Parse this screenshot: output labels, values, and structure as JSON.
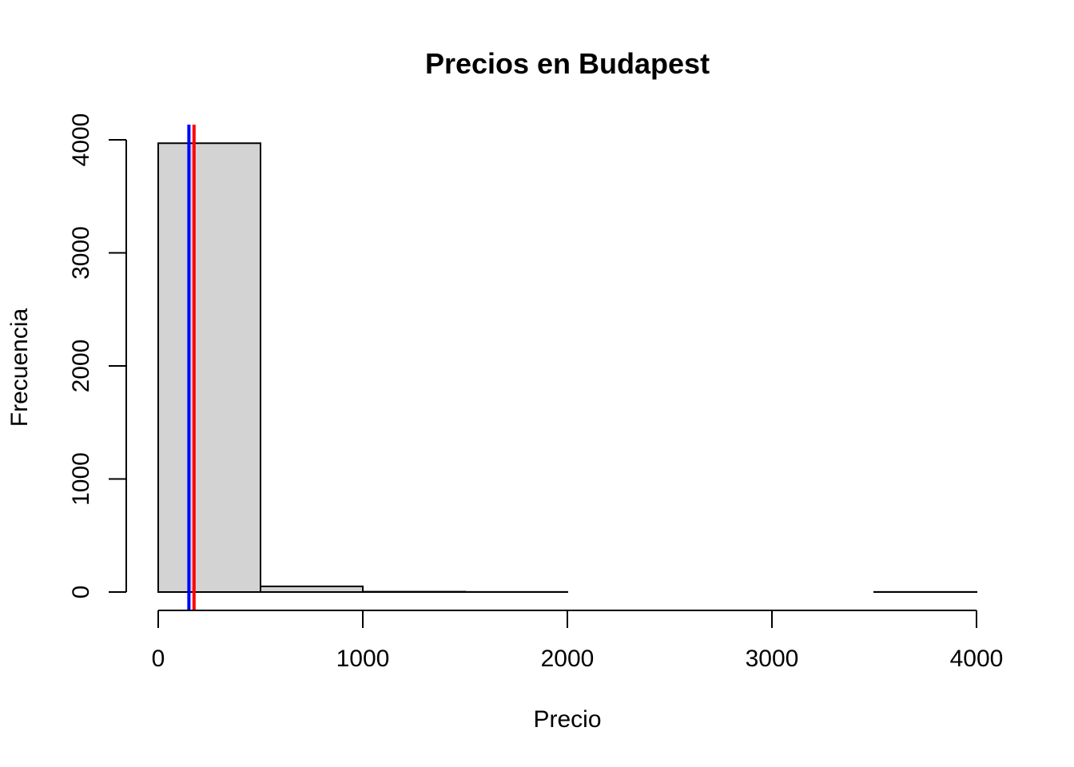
{
  "chart_data": {
    "type": "bar",
    "subtype": "histogram",
    "title": "Precios en Budapest",
    "xlabel": "Precio",
    "ylabel": "Frecuencia",
    "bins": [
      {
        "start": 0,
        "end": 500,
        "count": 3970
      },
      {
        "start": 500,
        "end": 1000,
        "count": 50
      },
      {
        "start": 1000,
        "end": 1500,
        "count": 3
      },
      {
        "start": 1500,
        "end": 2000,
        "count": 1
      },
      {
        "start": 2000,
        "end": 2500,
        "count": 0
      },
      {
        "start": 2500,
        "end": 3000,
        "count": 0
      },
      {
        "start": 3000,
        "end": 3500,
        "count": 0
      },
      {
        "start": 3500,
        "end": 4000,
        "count": 1
      }
    ],
    "xlim": [
      0,
      4000
    ],
    "ylim": [
      0,
      4000
    ],
    "xticks": [
      "0",
      "1000",
      "2000",
      "3000",
      "4000"
    ],
    "yticks": [
      "0",
      "1000",
      "2000",
      "3000",
      "4000"
    ],
    "vlines": [
      {
        "x": 150,
        "color": "#0000ff"
      },
      {
        "x": 175,
        "color": "#ff0000"
      }
    ],
    "bar_color": "#d3d3d3",
    "grid": false,
    "legend": "none"
  }
}
